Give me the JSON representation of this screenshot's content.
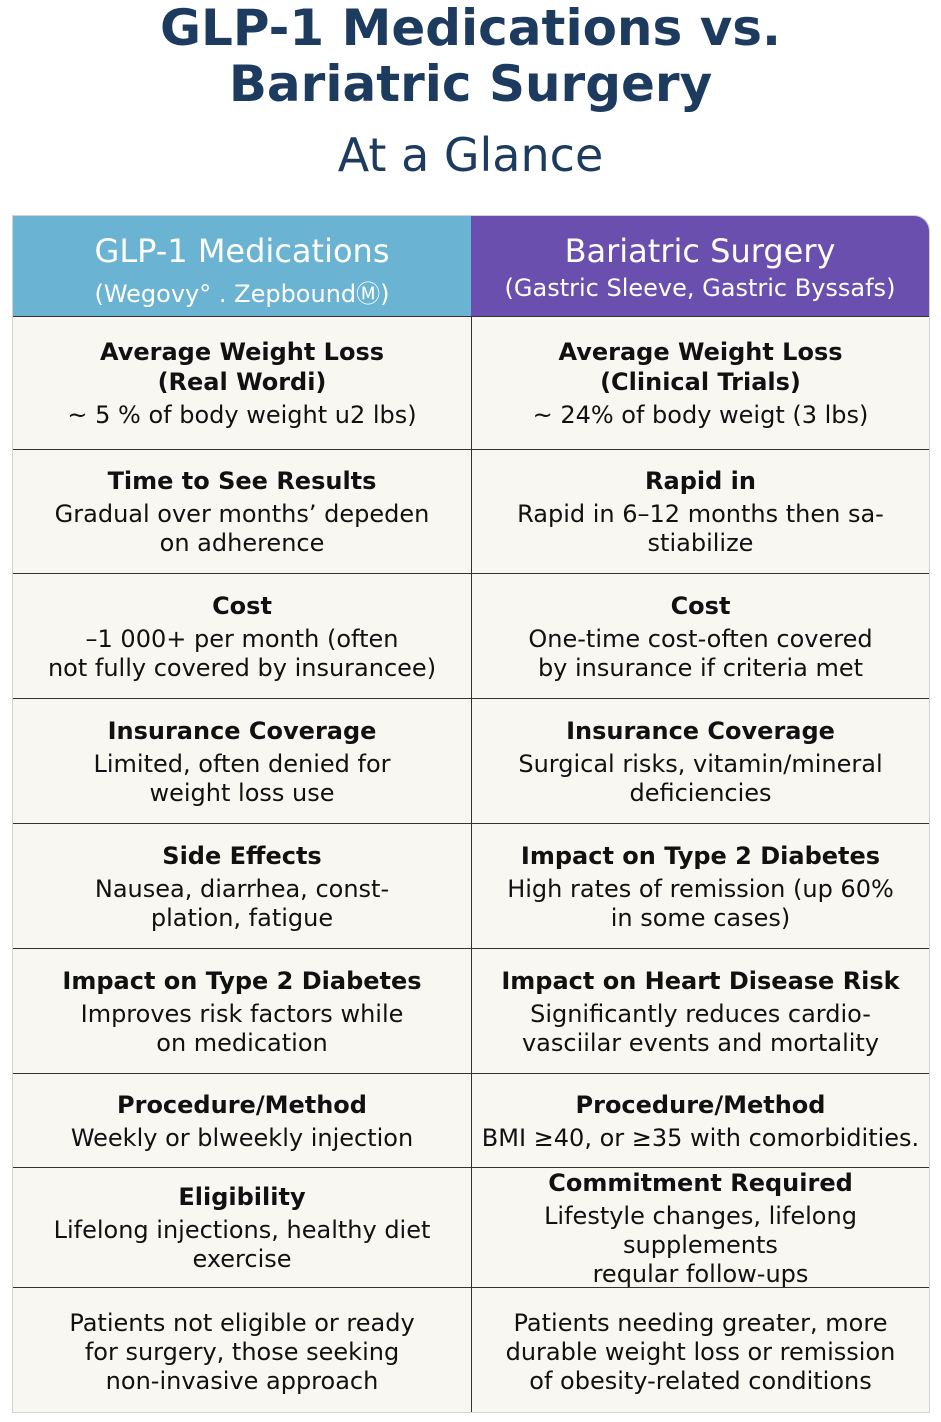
{
  "title": {
    "line1": "GLP-1 Medications vs.",
    "line2": "Bariatric Surgery",
    "subtitle": "At a Glance"
  },
  "columns": [
    {
      "heading": "GLP-1 Medications",
      "subheading": "(Wegovy° . ZepboundⓂ)",
      "color": "#6ab3d3"
    },
    {
      "heading": "Bariatric Surgery",
      "subheading": "(Gastric Sleeve, Gastric Byssafs)",
      "color": "#6a4fae"
    }
  ],
  "rows": [
    {
      "left": {
        "label": "Average Weight Loss\n(Real Wordi)",
        "value": "~ 5 % of body weight u2 lbs)"
      },
      "right": {
        "label": "Average Weight Loss\n(Clinical Trials)",
        "value": "~ 24% of body weigt (3 lbs)"
      }
    },
    {
      "left": {
        "label": "Time to See Results",
        "value": "Gradual over months’ depeden\non adherence"
      },
      "right": {
        "label": "Rapid in",
        "label_rest": " 6–12 months",
        "value": "Rapid in 6–12 months then sa-\nstiabilize"
      }
    },
    {
      "left": {
        "label": "Cost",
        "value": "–1 000+ per month (often\nnot fully covered by insurancee)"
      },
      "right": {
        "label": "Cost",
        "value": "One-time cost-often covered\nby insurance if criteria met"
      }
    },
    {
      "left": {
        "label": "Insurance Coverage",
        "value": "Limited, often denied for\nweight loss use"
      },
      "right": {
        "label": "Insurance Coverage",
        "value": "Surgical risks, vitamin/mineral\ndeficiencies"
      }
    },
    {
      "left": {
        "label": "Side Effects",
        "value": "Nausea, diarrhea, const-\nplation, fatigue"
      },
      "right": {
        "label": "Impact on Type 2 Diabetes",
        "value": "High rates of remission (up 60%\nin some cases)"
      }
    },
    {
      "left": {
        "label": "Impact on Type 2 Diabetes",
        "value": "Improves risk factors while\non medication"
      },
      "right": {
        "label": "Impact on Heart Disease Risk",
        "value": "Significantly reduces cardio-\nvasciilar events and mortality"
      }
    },
    {
      "left": {
        "label": "Procedure/Method",
        "value": "Weekly or blweekly injection"
      },
      "right": {
        "label": "Procedure/Method",
        "value": "BMI ≥40, or ≥35 with comorbidities."
      }
    },
    {
      "left": {
        "label": "Eligibility",
        "value": "Lifelong injections, healthy diet\nexercise"
      },
      "right": {
        "label": "Commitment Required",
        "value": "Lifestyle changes, lifelong supplements\nreqular follow-ups"
      }
    },
    {
      "left": {
        "label": "",
        "value": "Patients not eligible or ready\nfor surgery, those seeking\nnon-invasive approach"
      },
      "right": {
        "label": "",
        "value": "Patients needing greater, more\ndurable weight loss or remission\nof obesity-related conditions"
      }
    }
  ]
}
